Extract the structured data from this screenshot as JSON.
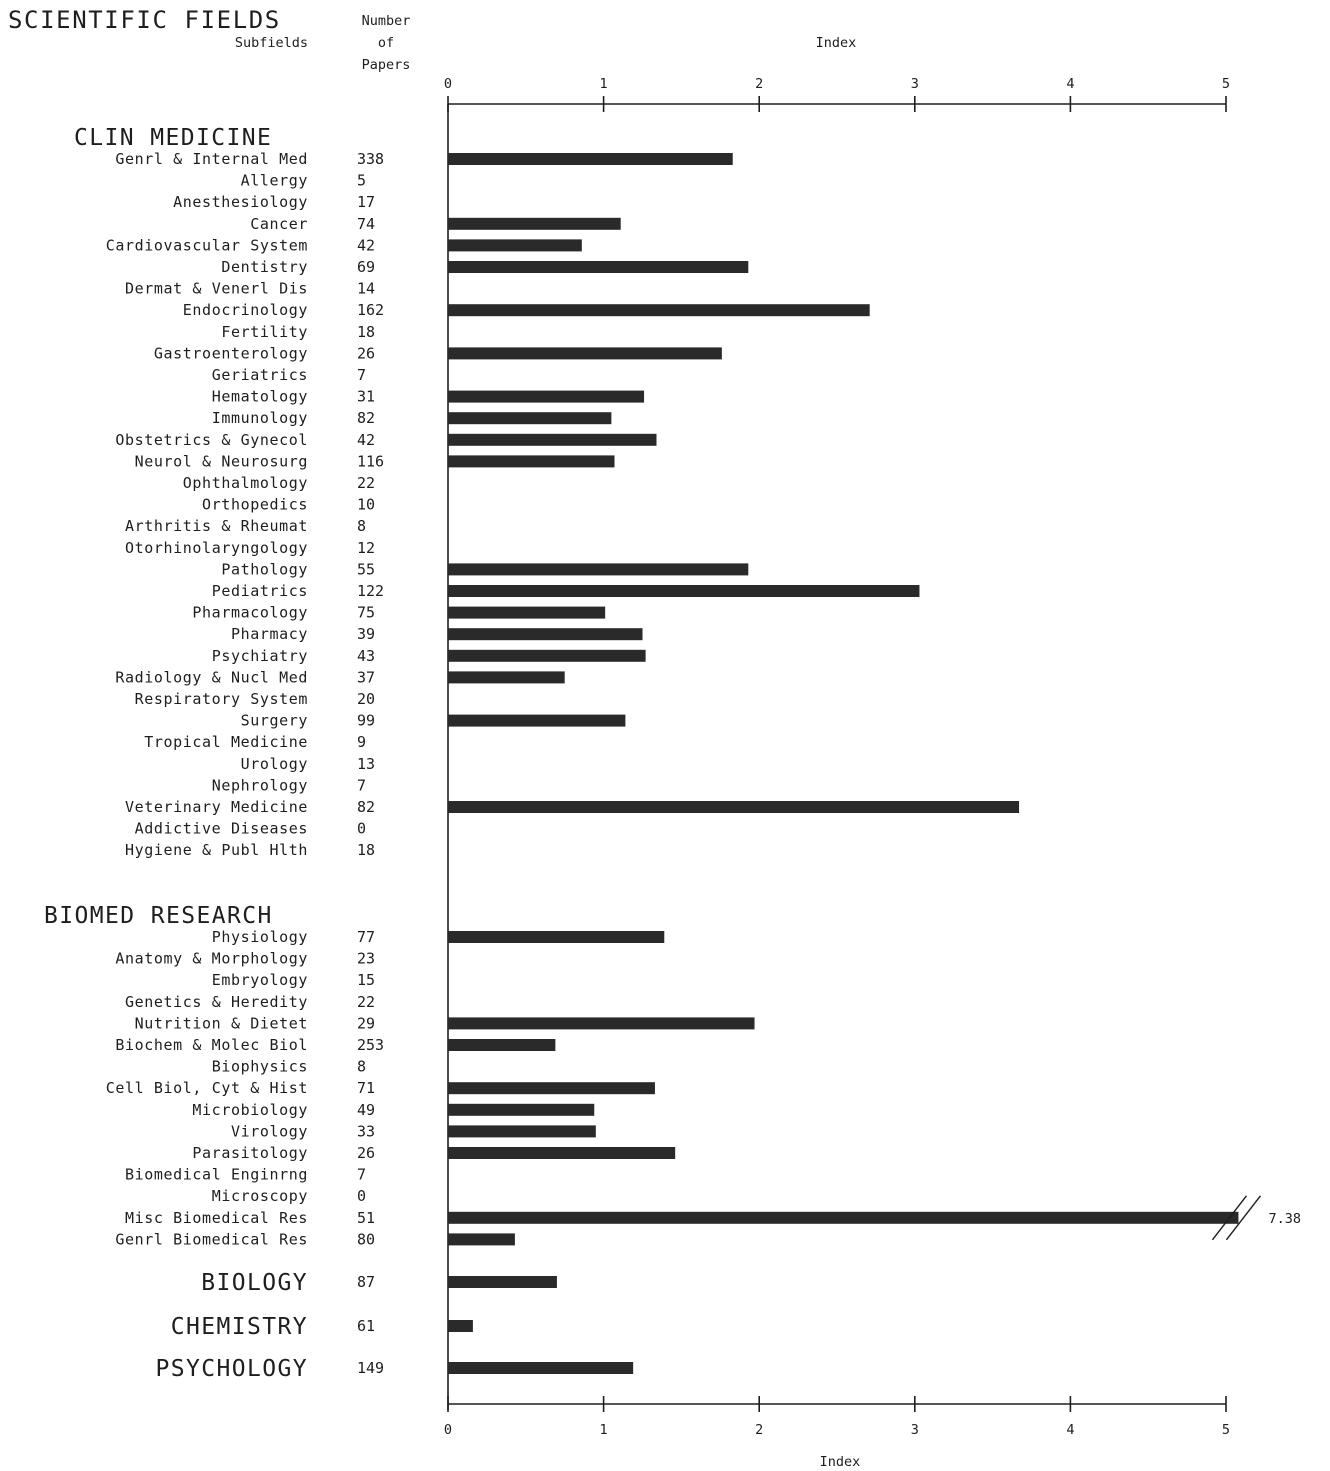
{
  "chart_data": {
    "type": "bar",
    "orientation": "horizontal",
    "title": "SCIENTIFIC FIELDS",
    "label_header": "Subfields",
    "count_header": [
      "Number",
      "of",
      "Papers"
    ],
    "xlabel": "Index",
    "xlim": [
      0,
      5
    ],
    "xticks": [
      "0",
      "1",
      "2",
      "3",
      "4",
      "5"
    ],
    "groups": [
      {
        "name": "CLIN MEDICINE",
        "items": [
          {
            "label": "Genrl & Internal Med",
            "count": "338",
            "value": 1.83
          },
          {
            "label": "Allergy",
            "count": "5",
            "value": null
          },
          {
            "label": "Anesthesiology",
            "count": "17",
            "value": null
          },
          {
            "label": "Cancer",
            "count": "74",
            "value": 1.11
          },
          {
            "label": "Cardiovascular System",
            "count": "42",
            "value": 0.86
          },
          {
            "label": "Dentistry",
            "count": "69",
            "value": 1.93
          },
          {
            "label": "Dermat & Venerl Dis",
            "count": "14",
            "value": null
          },
          {
            "label": "Endocrinology",
            "count": "162",
            "value": 2.71
          },
          {
            "label": "Fertility",
            "count": "18",
            "value": null
          },
          {
            "label": "Gastroenterology",
            "count": "26",
            "value": 1.76
          },
          {
            "label": "Geriatrics",
            "count": "7",
            "value": null
          },
          {
            "label": "Hematology",
            "count": "31",
            "value": 1.26
          },
          {
            "label": "Immunology",
            "count": "82",
            "value": 1.05
          },
          {
            "label": "Obstetrics & Gynecol",
            "count": "42",
            "value": 1.34
          },
          {
            "label": "Neurol & Neurosurg",
            "count": "116",
            "value": 1.07
          },
          {
            "label": "Ophthalmology",
            "count": "22",
            "value": null
          },
          {
            "label": "Orthopedics",
            "count": "10",
            "value": null
          },
          {
            "label": "Arthritis & Rheumat",
            "count": "8",
            "value": null
          },
          {
            "label": "Otorhinolaryngology",
            "count": "12",
            "value": null
          },
          {
            "label": "Pathology",
            "count": "55",
            "value": 1.93
          },
          {
            "label": "Pediatrics",
            "count": "122",
            "value": 3.03
          },
          {
            "label": "Pharmacology",
            "count": "75",
            "value": 1.01
          },
          {
            "label": "Pharmacy",
            "count": "39",
            "value": 1.25
          },
          {
            "label": "Psychiatry",
            "count": "43",
            "value": 1.27
          },
          {
            "label": "Radiology & Nucl Med",
            "count": "37",
            "value": 0.75
          },
          {
            "label": "Respiratory System",
            "count": "20",
            "value": null
          },
          {
            "label": "Surgery",
            "count": "99",
            "value": 1.14
          },
          {
            "label": "Tropical Medicine",
            "count": "9",
            "value": null
          },
          {
            "label": "Urology",
            "count": "13",
            "value": null
          },
          {
            "label": "Nephrology",
            "count": "7",
            "value": null
          },
          {
            "label": "Veterinary Medicine",
            "count": "82",
            "value": 3.67
          },
          {
            "label": "Addictive Diseases",
            "count": "0",
            "value": null
          },
          {
            "label": "Hygiene & Publ Hlth",
            "count": "18",
            "value": null
          }
        ]
      },
      {
        "name": "BIOMED RESEARCH",
        "items": [
          {
            "label": "Physiology",
            "count": "77",
            "value": 1.39
          },
          {
            "label": "Anatomy & Morphology",
            "count": "23",
            "value": null
          },
          {
            "label": "Embryology",
            "count": "15",
            "value": null
          },
          {
            "label": "Genetics & Heredity",
            "count": "22",
            "value": null
          },
          {
            "label": "Nutrition & Dietet",
            "count": "29",
            "value": 1.97
          },
          {
            "label": "Biochem & Molec Biol",
            "count": "253",
            "value": 0.69
          },
          {
            "label": "Biophysics",
            "count": "8",
            "value": null
          },
          {
            "label": "Cell Biol, Cyt & Hist",
            "count": "71",
            "value": 1.33
          },
          {
            "label": "Microbiology",
            "count": "49",
            "value": 0.94
          },
          {
            "label": "Virology",
            "count": "33",
            "value": 0.95
          },
          {
            "label": "Parasitology",
            "count": "26",
            "value": 1.46
          },
          {
            "label": "Biomedical Enginrng",
            "count": "7",
            "value": null
          },
          {
            "label": "Microscopy",
            "count": "0",
            "value": null
          },
          {
            "label": "Misc Biomedical Res",
            "count": "51",
            "value": 7.38,
            "value_label": "7.38",
            "truncated": true
          },
          {
            "label": "Genrl Biomedical Res",
            "count": "80",
            "value": 0.43
          }
        ]
      },
      {
        "name": "BIOLOGY",
        "items": [
          {
            "count": "87",
            "value": 0.7
          }
        ]
      },
      {
        "name": "CHEMISTRY",
        "items": [
          {
            "count": "61",
            "value": 0.16
          }
        ]
      },
      {
        "name": "PSYCHOLOGY",
        "items": [
          {
            "count": "149",
            "value": 1.19
          }
        ]
      }
    ]
  }
}
